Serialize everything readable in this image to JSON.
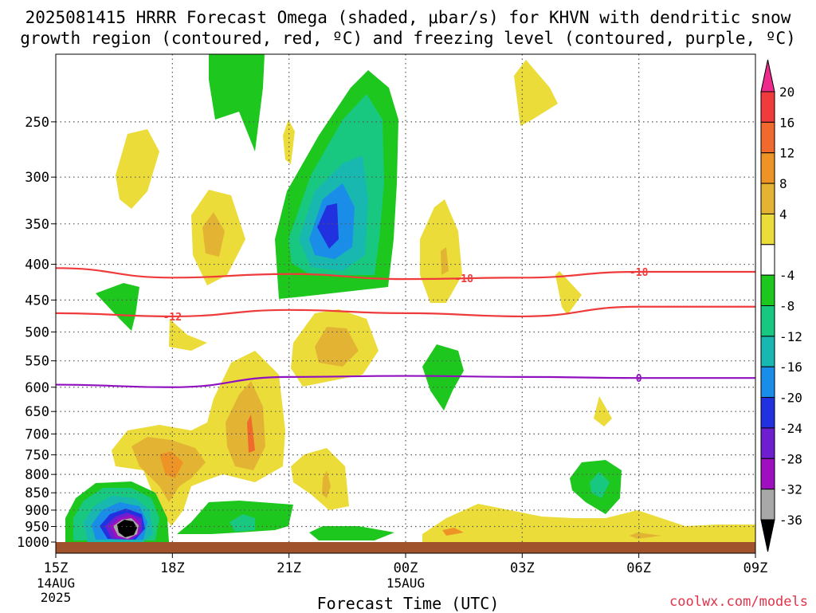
{
  "title_line1": "2025081415 HRRR Forecast Omega (shaded, μbar/s) for KHVN with dendritic snow",
  "title_line2": "growth region (contoured, red, ºC) and freezing level (contoured, purple, ºC)",
  "credit": "coolwx.com/models",
  "chart_data": {
    "type": "contour",
    "title": "2025081415 HRRR Forecast Omega (shaded, μbar/s) for KHVN with dendritic snow growth region (contoured, red, ºC) and freezing level (contoured, purple, ºC)",
    "xlabel": "Forecast Time (UTC)",
    "ylabel": "",
    "x_range_hours": [
      0,
      18
    ],
    "y_range_hpa": [
      1000,
      200
    ],
    "y_scale": "log",
    "grid": true,
    "x_ticks": [
      {
        "hour": 0,
        "label": "15Z",
        "sub": [
          "14AUG",
          "2025"
        ]
      },
      {
        "hour": 3,
        "label": "18Z",
        "sub": []
      },
      {
        "hour": 6,
        "label": "21Z",
        "sub": []
      },
      {
        "hour": 9,
        "label": "00Z",
        "sub": [
          "15AUG"
        ]
      },
      {
        "hour": 12,
        "label": "03Z",
        "sub": []
      },
      {
        "hour": 15,
        "label": "06Z",
        "sub": []
      },
      {
        "hour": 18,
        "label": "09Z",
        "sub": []
      }
    ],
    "y_ticks": [
      250,
      300,
      350,
      400,
      450,
      500,
      550,
      600,
      650,
      700,
      750,
      800,
      850,
      900,
      950,
      1000
    ],
    "colorbar": {
      "labels": [
        20,
        16,
        12,
        8,
        4,
        -4,
        -8,
        -12,
        -16,
        -20,
        -24,
        -28,
        -32,
        -36
      ],
      "colors": [
        "#ee2a8c",
        "#ef3b3b",
        "#ef6a2c",
        "#ee9426",
        "#e3b433",
        "#ebdc3a",
        "#ffffff",
        "#1ec71e",
        "#18c880",
        "#18b8b0",
        "#1a8de8",
        "#2131e0",
        "#6d1fd0",
        "#9e0fc0",
        "#a8a8a8",
        "#000000"
      ]
    },
    "contours": [
      {
        "name": "-18",
        "color": "#ef3b3b",
        "type": "dendritic",
        "x_hours": [
          0,
          3,
          6,
          9,
          12,
          15,
          18
        ],
        "pressure_hpa": [
          405,
          418,
          413,
          420,
          418,
          410,
          410
        ]
      },
      {
        "name": "-12",
        "color": "#ef3b3b",
        "type": "dendritic",
        "x_hours": [
          0,
          3,
          6,
          9,
          12,
          15,
          18
        ],
        "pressure_hpa": [
          470,
          475,
          465,
          470,
          475,
          460,
          460
        ]
      },
      {
        "name": "0",
        "color": "#9010c0",
        "type": "freezing",
        "x_hours": [
          0,
          3,
          6,
          9,
          12,
          15,
          18
        ],
        "pressure_hpa": [
          595,
          600,
          580,
          578,
          580,
          582,
          582
        ]
      }
    ],
    "omega_regions": [
      {
        "sign": "negative",
        "min": -36,
        "x_hours": 1.7,
        "pressure_hpa": 930
      },
      {
        "sign": "negative",
        "min": -20,
        "x_hours": 7.0,
        "pressure_hpa": 360
      },
      {
        "sign": "negative",
        "min": -8,
        "x_hours": 5.2,
        "pressure_hpa": 950
      },
      {
        "sign": "negative",
        "min": -8,
        "x_hours": 14.9,
        "pressure_hpa": 835
      },
      {
        "sign": "negative",
        "min": -4,
        "x_hours": 9.5,
        "pressure_hpa": 590
      },
      {
        "sign": "positive",
        "max": 16,
        "x_hours": 4.9,
        "pressure_hpa": 700
      },
      {
        "sign": "positive",
        "max": 12,
        "x_hours": 3.0,
        "pressure_hpa": 770
      },
      {
        "sign": "positive",
        "max": 12,
        "x_hours": 7.2,
        "pressure_hpa": 535
      },
      {
        "sign": "positive",
        "max": 8,
        "x_hours": 4.0,
        "pressure_hpa": 370
      },
      {
        "sign": "positive",
        "max": 8,
        "x_hours": 7.0,
        "pressure_hpa": 820
      }
    ]
  }
}
